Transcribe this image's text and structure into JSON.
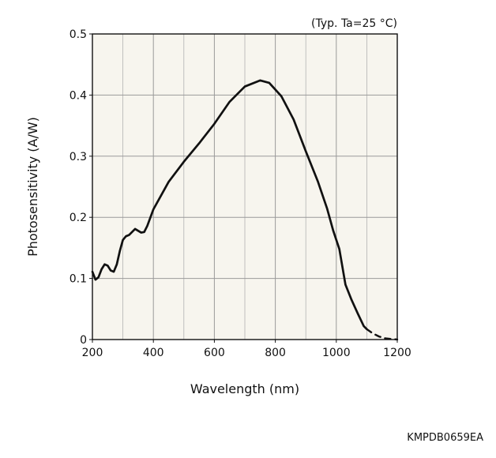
{
  "chart_data": {
    "type": "line",
    "annotation": "(Typ. Ta=25 °C)",
    "xlabel": "Wavelength (nm)",
    "ylabel": "Photosensitivity (A/W)",
    "code_label": "KMPDB0659EA",
    "xlim": [
      200,
      1200
    ],
    "ylim": [
      0,
      0.5
    ],
    "x_ticks": [
      200,
      400,
      600,
      800,
      1000,
      1200
    ],
    "y_ticks": [
      0,
      0.1,
      0.2,
      0.3,
      0.4,
      0.5
    ],
    "x_tick_labels": [
      "200",
      "400",
      "600",
      "800",
      "1000",
      "1200"
    ],
    "y_tick_labels": [
      "0",
      "0.1",
      "0.2",
      "0.3",
      "0.4",
      "0.5"
    ],
    "grid": true,
    "plot_background": "#f7f5ee",
    "line_color": "#111111",
    "series": [
      {
        "style": "solid",
        "points": [
          [
            200,
            0.111
          ],
          [
            210,
            0.098
          ],
          [
            220,
            0.102
          ],
          [
            230,
            0.115
          ],
          [
            240,
            0.123
          ],
          [
            250,
            0.121
          ],
          [
            260,
            0.113
          ],
          [
            270,
            0.111
          ],
          [
            280,
            0.123
          ],
          [
            290,
            0.145
          ],
          [
            300,
            0.163
          ],
          [
            310,
            0.169
          ],
          [
            320,
            0.171
          ],
          [
            340,
            0.181
          ],
          [
            360,
            0.175
          ],
          [
            370,
            0.176
          ],
          [
            380,
            0.186
          ],
          [
            400,
            0.213
          ],
          [
            450,
            0.258
          ],
          [
            500,
            0.291
          ],
          [
            550,
            0.321
          ],
          [
            600,
            0.353
          ],
          [
            650,
            0.389
          ],
          [
            700,
            0.414
          ],
          [
            750,
            0.424
          ],
          [
            780,
            0.42
          ],
          [
            820,
            0.398
          ],
          [
            860,
            0.36
          ],
          [
            900,
            0.308
          ],
          [
            940,
            0.258
          ],
          [
            970,
            0.214
          ],
          [
            990,
            0.178
          ],
          [
            1010,
            0.148
          ],
          [
            1030,
            0.09
          ],
          [
            1050,
            0.065
          ],
          [
            1070,
            0.043
          ],
          [
            1090,
            0.022
          ],
          [
            1100,
            0.017
          ]
        ]
      },
      {
        "style": "dashed",
        "points": [
          [
            1100,
            0.017
          ],
          [
            1120,
            0.01
          ],
          [
            1140,
            0.005
          ],
          [
            1160,
            0.002
          ],
          [
            1180,
            0.001
          ],
          [
            1200,
            0.0
          ]
        ]
      }
    ]
  }
}
